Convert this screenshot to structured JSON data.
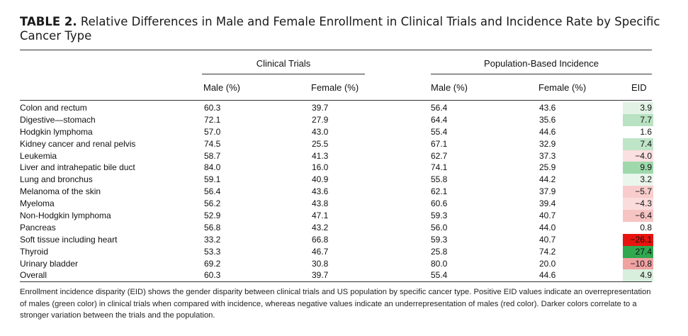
{
  "title": {
    "label": "TABLE 2.",
    "text": "Relative Differences in Male and Female Enrollment in Clinical Trials and Incidence Rate by Specific Cancer Type"
  },
  "groups": {
    "clinical_trials": "Clinical Trials",
    "population": "Population-Based Incidence"
  },
  "columns": {
    "ct_male": "Male (%)",
    "ct_female": "Female (%)",
    "pop_male": "Male (%)",
    "pop_female": "Female (%)",
    "eid": "EID"
  },
  "rows": [
    {
      "name": "Colon and rectum",
      "ct_male": "60.3",
      "ct_female": "39.7",
      "pop_male": "56.4",
      "pop_female": "43.6",
      "eid": "3.9",
      "eid_color": "#e2f3e6"
    },
    {
      "name": "Digestive—stomach",
      "ct_male": "72.1",
      "ct_female": "27.9",
      "pop_male": "64.4",
      "pop_female": "35.6",
      "eid": "7.7",
      "eid_color": "#b8e2c2"
    },
    {
      "name": "Hodgkin lymphoma",
      "ct_male": "57.0",
      "ct_female": "43.0",
      "pop_male": "55.4",
      "pop_female": "44.6",
      "eid": "1.6",
      "eid_color": "#ffffff"
    },
    {
      "name": "Kidney cancer and renal pelvis",
      "ct_male": "74.5",
      "ct_female": "25.5",
      "pop_male": "67.1",
      "pop_female": "32.9",
      "eid": "7.4",
      "eid_color": "#bfe5c8"
    },
    {
      "name": "Leukemia",
      "ct_male": "58.7",
      "ct_female": "41.3",
      "pop_male": "62.7",
      "pop_female": "37.3",
      "eid": "−4.0",
      "eid_color": "#fbe0e0"
    },
    {
      "name": "Liver and intrahepatic bile duct",
      "ct_male": "84.0",
      "ct_female": "16.0",
      "pop_male": "74.1",
      "pop_female": "25.9",
      "eid": "9.9",
      "eid_color": "#9ed8ab"
    },
    {
      "name": "Lung and bronchus",
      "ct_male": "59.1",
      "ct_female": "40.9",
      "pop_male": "55.8",
      "pop_female": "44.2",
      "eid": "3.2",
      "eid_color": "#eaf6ec"
    },
    {
      "name": "Melanoma of the skin",
      "ct_male": "56.4",
      "ct_female": "43.6",
      "pop_male": "62.1",
      "pop_female": "37.9",
      "eid": "−5.7",
      "eid_color": "#f8cccc"
    },
    {
      "name": "Myeloma",
      "ct_male": "56.2",
      "ct_female": "43.8",
      "pop_male": "60.6",
      "pop_female": "39.4",
      "eid": "−4.3",
      "eid_color": "#fbdcdc"
    },
    {
      "name": "Non-Hodgkin lymphoma",
      "ct_male": "52.9",
      "ct_female": "47.1",
      "pop_male": "59.3",
      "pop_female": "40.7",
      "eid": "−6.4",
      "eid_color": "#f7c4c4"
    },
    {
      "name": "Pancreas",
      "ct_male": "56.8",
      "ct_female": "43.2",
      "pop_male": "56.0",
      "pop_female": "44.0",
      "eid": "0.8",
      "eid_color": "#ffffff"
    },
    {
      "name": "Soft tissue including heart",
      "ct_male": "33.2",
      "ct_female": "66.8",
      "pop_male": "59.3",
      "pop_female": "40.7",
      "eid": "−26.1",
      "eid_color": "#e8130f"
    },
    {
      "name": "Thyroid",
      "ct_male": "53.3",
      "ct_female": "46.7",
      "pop_male": "25.8",
      "pop_female": "74.2",
      "eid": "27.4",
      "eid_color": "#2fa84f"
    },
    {
      "name": "Urinary bladder",
      "ct_male": "69.2",
      "ct_female": "30.8",
      "pop_male": "80.0",
      "pop_female": "20.0",
      "eid": "−10.8",
      "eid_color": "#f0a2a2"
    },
    {
      "name": "Overall",
      "ct_male": "60.3",
      "ct_female": "39.7",
      "pop_male": "55.4",
      "pop_female": "44.6",
      "eid": "4.9",
      "eid_color": "#d9efde"
    }
  ],
  "footnote": "Enrollment incidence disparity (EID) shows the gender disparity between clinical trials and US population by specific cancer type. Positive EID values indicate an overrepresentation of males (green color) in clinical trials when compared with incidence, whereas negative values indicate an underrepresentation of males (red color). Darker colors correlate to a stronger variation between the trials and the population."
}
